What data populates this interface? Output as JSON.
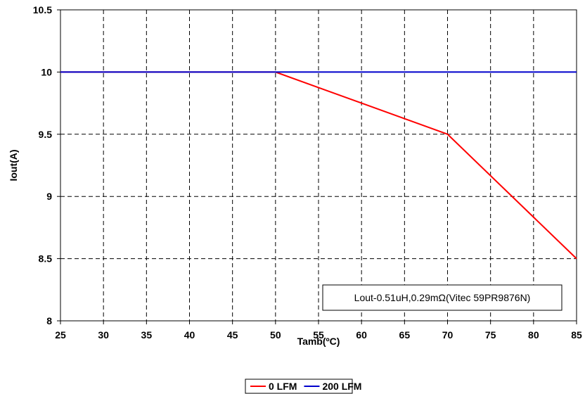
{
  "chart_data": {
    "type": "line",
    "xlabel": "Tamb(ºC)",
    "ylabel": "Iout(A)",
    "xlim": [
      25,
      85
    ],
    "ylim": [
      8,
      10.5
    ],
    "x_ticks": [
      "25",
      "30",
      "35",
      "40",
      "45",
      "50",
      "55",
      "60",
      "65",
      "70",
      "75",
      "80",
      "85"
    ],
    "y_ticks": [
      "8",
      "8.5",
      "9",
      "9.5",
      "10",
      "10.5"
    ],
    "grid": true,
    "legend_position": "bottom",
    "annotation": "Lout-0.51uH,0.29mΩ(Vitec 59PR9876N)",
    "series": [
      {
        "name": "0 LFM",
        "color": "#ff0000",
        "x": [
          25,
          50,
          70,
          85
        ],
        "y": [
          10,
          10,
          9.5,
          8.5
        ]
      },
      {
        "name": "200 LFM",
        "color": "#0000cc",
        "x": [
          25,
          85
        ],
        "y": [
          10,
          10
        ]
      }
    ]
  }
}
